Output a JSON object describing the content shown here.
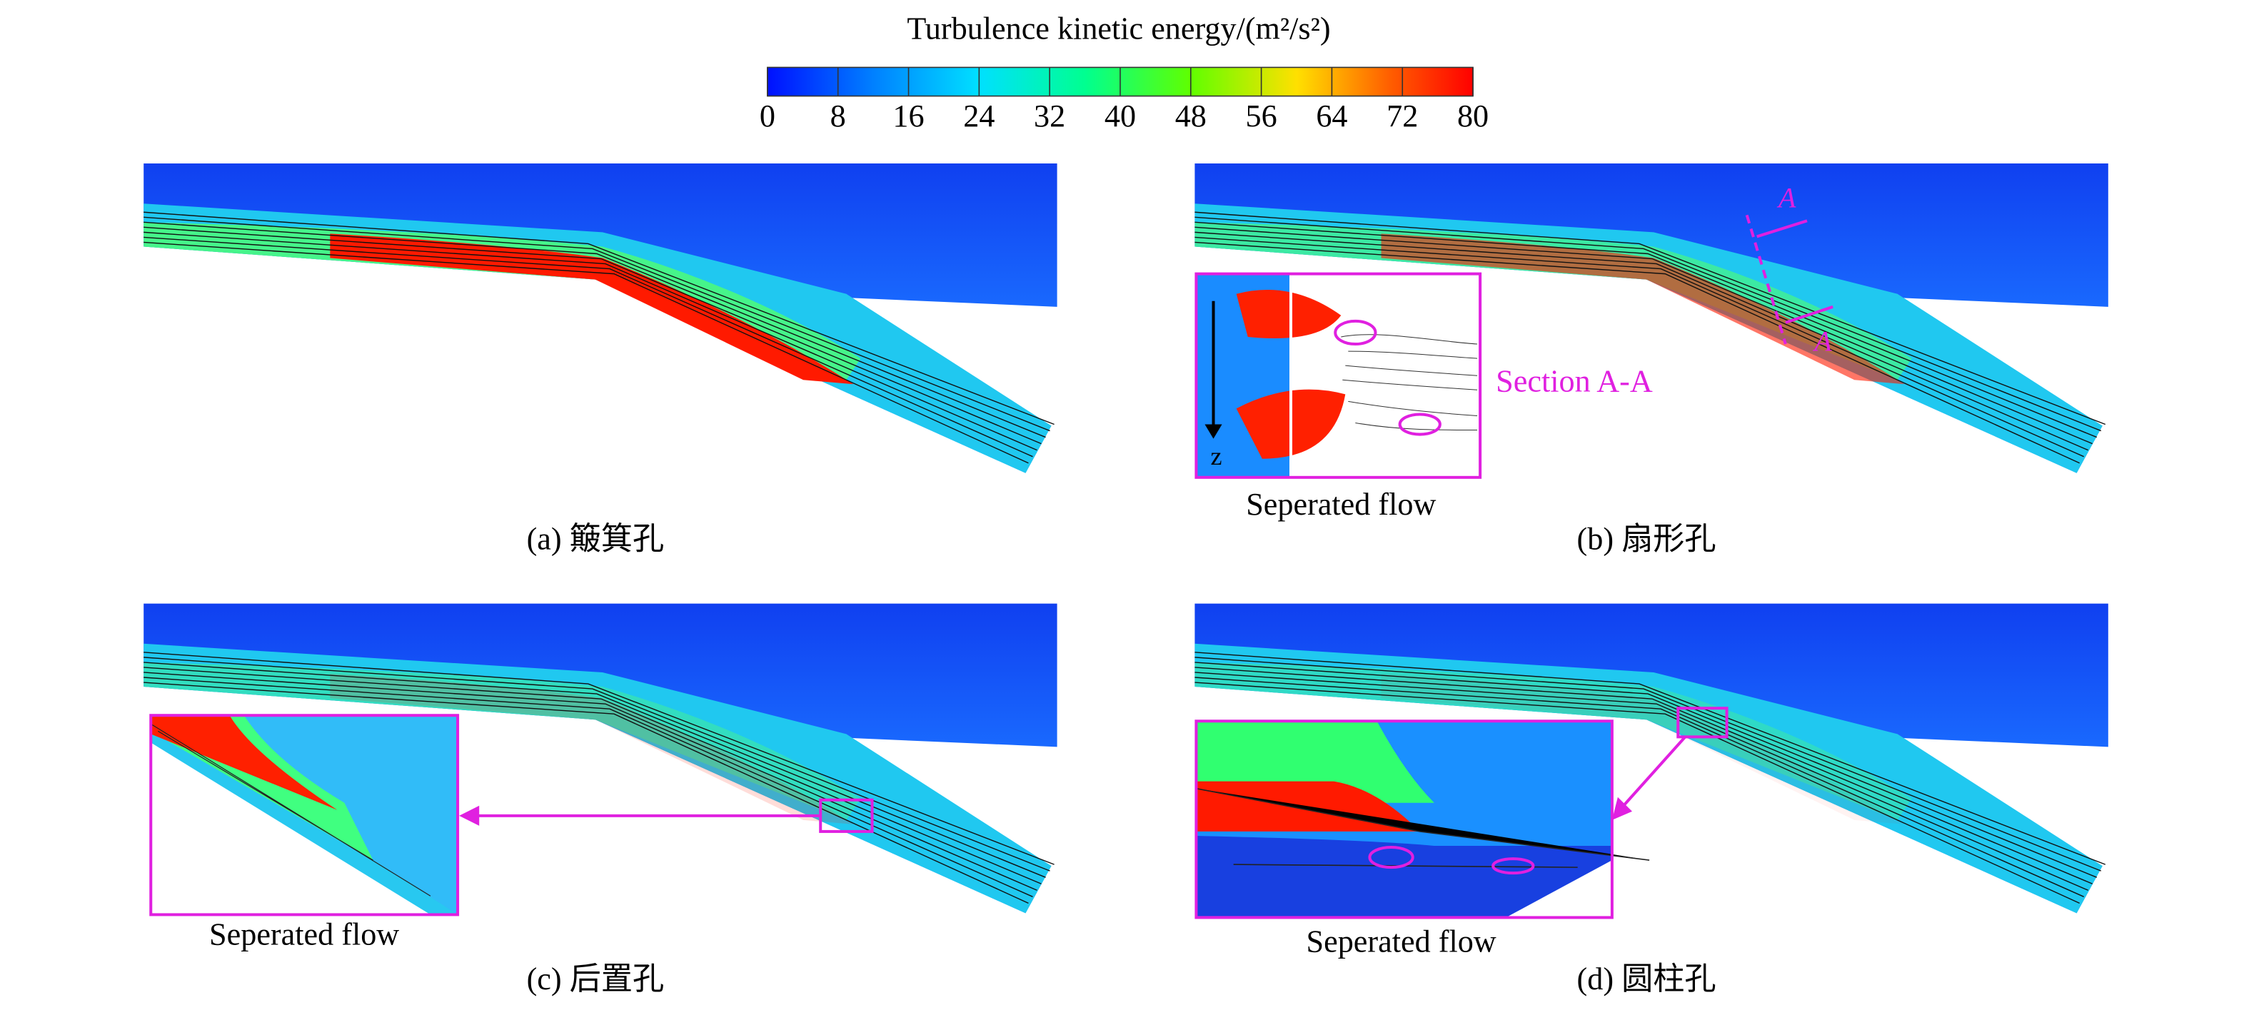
{
  "colorbar": {
    "title": "Turbulence kinetic energy/(m²/s²)",
    "clim": [
      0,
      80
    ],
    "ticks": [
      0,
      8,
      16,
      24,
      32,
      40,
      48,
      56,
      64,
      72,
      80
    ]
  },
  "panels": [
    {
      "label": "(a) 簸箕孔"
    },
    {
      "label": "(b) 扇形孔",
      "inset_caption": "Seperated flow",
      "section_label": "Section A-A",
      "section_marks": [
        "A",
        "A"
      ],
      "axis_label": "z"
    },
    {
      "label": "(c) 后置孔",
      "inset_caption": "Seperated flow"
    },
    {
      "label": "(d) 圆柱孔",
      "inset_caption": "Seperated flow"
    }
  ]
}
